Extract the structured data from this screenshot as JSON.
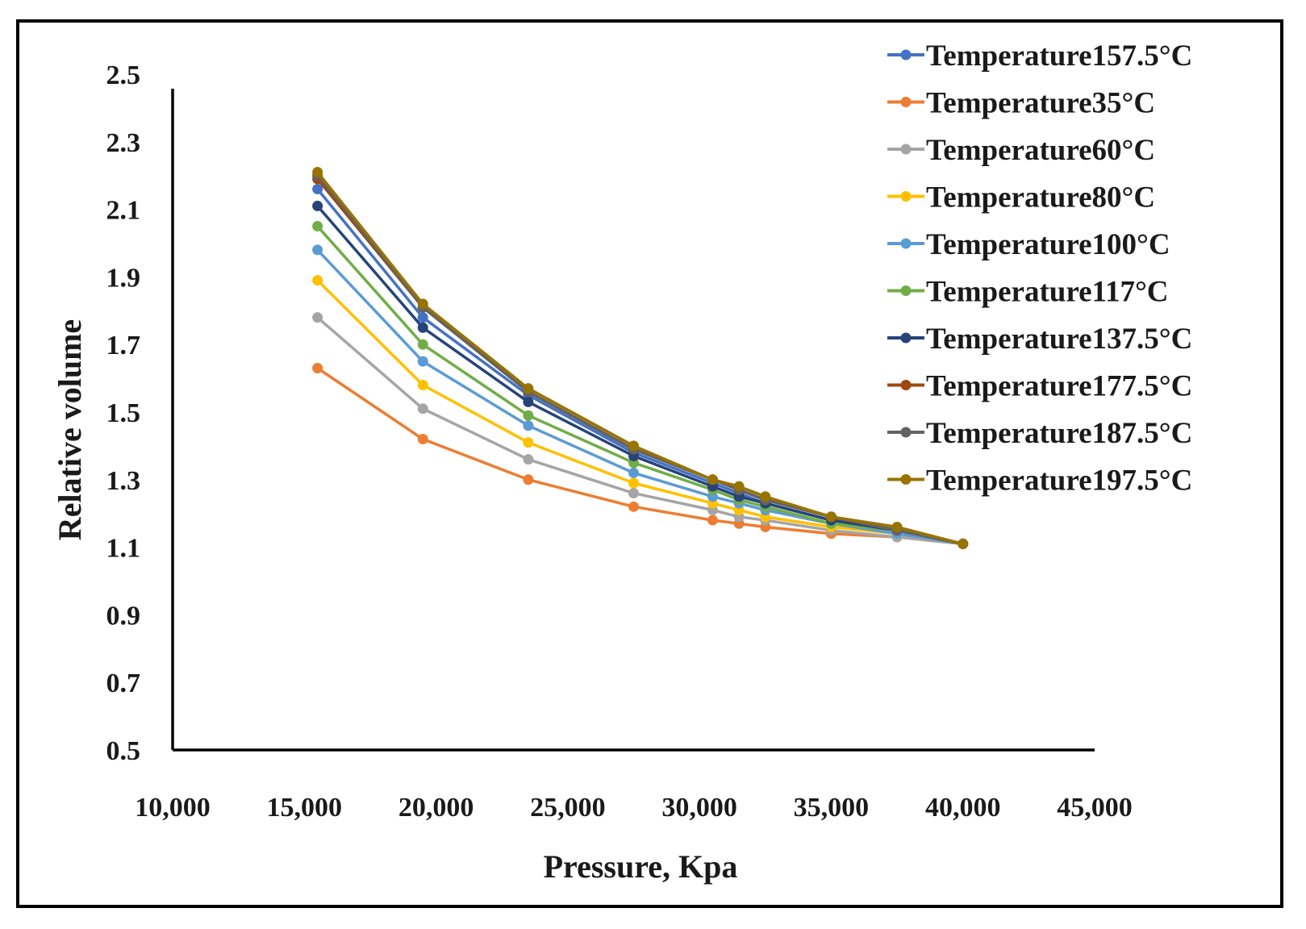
{
  "chart_data": {
    "type": "line",
    "title": "",
    "xlabel": "Pressure, Kpa",
    "ylabel": "Relative volume",
    "xlim": [
      10000,
      45000
    ],
    "ylim": [
      0.5,
      2.5
    ],
    "x_ticks": [
      10000,
      15000,
      20000,
      25000,
      30000,
      35000,
      40000,
      45000
    ],
    "x_tick_labels": [
      "10,000",
      "15,000",
      "20,000",
      "25,000",
      "30,000",
      "35,000",
      "40,000",
      "45,000"
    ],
    "y_ticks": [
      0.5,
      0.7,
      0.9,
      1.1,
      1.3,
      1.5,
      1.7,
      1.9,
      2.1,
      2.3,
      2.5
    ],
    "y_tick_labels": [
      "0.5",
      "0.7",
      "0.9",
      "1.1",
      "1.3",
      "1.5",
      "1.7",
      "1.9",
      "2.1",
      "2.3",
      "2.5"
    ],
    "grid": false,
    "legend_position": "top-right",
    "x": [
      15500,
      19500,
      23500,
      27500,
      30500,
      31500,
      32500,
      35000,
      37500,
      40000
    ],
    "series": [
      {
        "name": "Temperature157.5°C",
        "color": "#4472C4",
        "values": [
          2.16,
          1.78,
          1.55,
          1.38,
          1.29,
          1.26,
          1.23,
          1.18,
          1.15,
          1.11
        ]
      },
      {
        "name": "Temperature35°C",
        "color": "#ED7D31",
        "values": [
          1.63,
          1.42,
          1.3,
          1.22,
          1.18,
          1.17,
          1.16,
          1.14,
          1.13,
          1.11
        ]
      },
      {
        "name": "Temperature60°C",
        "color": "#A5A5A5",
        "values": [
          1.78,
          1.51,
          1.36,
          1.26,
          1.21,
          1.19,
          1.18,
          1.15,
          1.13,
          1.11
        ]
      },
      {
        "name": "Temperature80°C",
        "color": "#FFC000",
        "values": [
          1.89,
          1.58,
          1.41,
          1.29,
          1.23,
          1.21,
          1.19,
          1.16,
          1.14,
          1.11
        ]
      },
      {
        "name": "Temperature100°C",
        "color": "#5B9BD5",
        "values": [
          1.98,
          1.65,
          1.46,
          1.32,
          1.25,
          1.23,
          1.21,
          1.17,
          1.14,
          1.11
        ]
      },
      {
        "name": "Temperature117°C",
        "color": "#70AD47",
        "values": [
          2.05,
          1.7,
          1.49,
          1.35,
          1.27,
          1.24,
          1.22,
          1.17,
          1.15,
          1.11
        ]
      },
      {
        "name": "Temperature137.5°C",
        "color": "#264478",
        "values": [
          2.11,
          1.75,
          1.53,
          1.37,
          1.28,
          1.25,
          1.23,
          1.18,
          1.15,
          1.11
        ]
      },
      {
        "name": "Temperature177.5°C",
        "color": "#9E480E",
        "values": [
          2.19,
          1.81,
          1.56,
          1.39,
          1.3,
          1.27,
          1.24,
          1.19,
          1.15,
          1.11
        ]
      },
      {
        "name": "Temperature187.5°C",
        "color": "#636363",
        "values": [
          2.2,
          1.81,
          1.56,
          1.39,
          1.3,
          1.27,
          1.24,
          1.19,
          1.15,
          1.11
        ]
      },
      {
        "name": "Temperature197.5°C",
        "color": "#997300",
        "values": [
          2.21,
          1.82,
          1.57,
          1.4,
          1.3,
          1.28,
          1.25,
          1.19,
          1.16,
          1.11
        ]
      }
    ]
  }
}
